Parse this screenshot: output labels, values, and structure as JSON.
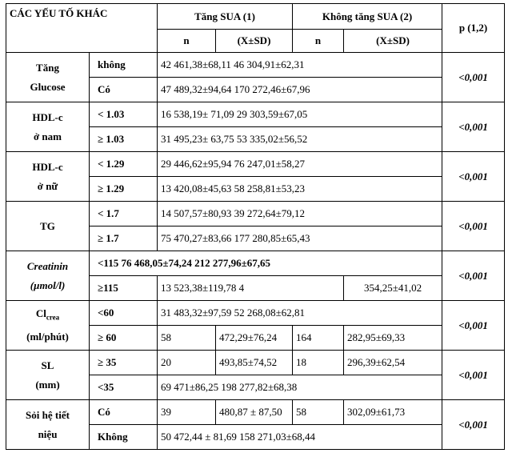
{
  "table": {
    "header": {
      "factor": "CÁC YẾU TỐ KHÁC",
      "group1": "Tăng SUA (1)",
      "group2": "Không tăng SUA (2)",
      "p": "p (1,2)",
      "n1": "n",
      "sd1": "(X±SD)",
      "n2": "n",
      "sd2": "(X±SD)"
    },
    "groups": [
      {
        "line1": "Tăng",
        "line2": "Glucose",
        "p": "<0,001",
        "rows": [
          {
            "label": "không",
            "cells": [
              "42 461,38±68,11   46 304,91±62,31"
            ]
          },
          {
            "label": "Có",
            "cells": [
              "47 489,32±94,64 170 272,46±67,96"
            ]
          }
        ]
      },
      {
        "line1": "HDL-c",
        "line2": "ở nam",
        "p": "<0,001",
        "rows": [
          {
            "label": "< 1.03",
            "cells": [
              "16 538,19±           71,09   29 303,59±67,05"
            ]
          },
          {
            "label": "≥ 1.03",
            "cells": [
              "31 495,23±           63,75    53 335,02±56,52"
            ]
          }
        ]
      },
      {
        "line1": "HDL-c",
        "line2": "ở nữ",
        "p": "<0,001",
        "rows": [
          {
            "label": "< 1.29",
            "cells": [
              "29 446,62±95,94   76 247,01±58,27"
            ]
          },
          {
            "label": "≥ 1.29",
            "cells": [
              "13 420,08±45,63   58 258,81±53,23"
            ]
          }
        ]
      },
      {
        "line1": "TG",
        "line2": "",
        "p": "<0,001",
        "rows": [
          {
            "label": "< 1.7",
            "cells": [
              "14 507,57±80,93   39 272,64±79,12"
            ]
          },
          {
            "label": "≥ 1.7",
            "cells": [
              "75 470,27±83,66 177 280,85±65,43"
            ]
          }
        ]
      },
      {
        "line1": "Creatinin",
        "line2": "(µmol/l)",
        "italic": true,
        "p": "<0,001",
        "rows": [
          {
            "label": "<115 76 468,05±74,24   212 277,96±67,65",
            "cells": []
          },
          {
            "label": "≥115",
            "cells": [
              "13 523,38±119,78   4",
              "354,25±41,02"
            ]
          }
        ]
      },
      {
        "line1": "Cl",
        "line1_sub": "crea",
        "line2": "(ml/phút)",
        "p": "<0,001",
        "rows": [
          {
            "label": "<60",
            "cells": [
              "31 483,32±97,59   52 268,08±62,81"
            ]
          },
          {
            "label": "≥ 60",
            "cells": [
              "58",
              "472,29±76,24",
              "164",
              "282,95±69,33"
            ]
          }
        ]
      },
      {
        "line1": "SL",
        "line2": "(mm)",
        "p": "<0,001",
        "rows": [
          {
            "label": "≥ 35",
            "cells": [
              "20",
              "493,85±74,52",
              "18",
              "296,39±62,54"
            ]
          },
          {
            "label": "<35",
            "cells": [
              "69    471±86,25   198 277,82±68,38"
            ]
          }
        ]
      },
      {
        "line1": "Sỏi hệ tiết",
        "line2": "niệu",
        "p": "<0,001",
        "rows": [
          {
            "label": "Có",
            "cells": [
              "39",
              "480,87 ± 87,50",
              "58",
              "302,09±61,73"
            ]
          },
          {
            "label": "Không",
            "cells": [
              "50 472,44 ± 81,69 158 271,03±68,44"
            ]
          }
        ]
      }
    ]
  }
}
